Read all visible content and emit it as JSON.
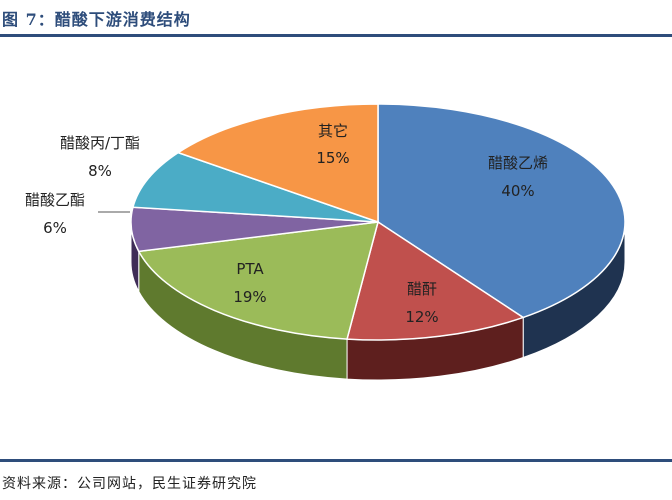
{
  "header": {
    "title": "图 7：醋酸下游消费结构"
  },
  "footer": {
    "source": "资料来源：公司网站，民生证券研究院"
  },
  "chart_data": {
    "type": "pie",
    "title": "图 7：醋酸下游消费结构",
    "style": "3d",
    "slices": [
      {
        "name": "醋酸乙烯",
        "value": 40,
        "label": "40%",
        "color": "#4f81bd",
        "side_color": "#1f3350"
      },
      {
        "name": "醋酐",
        "value": 12,
        "label": "12%",
        "color": "#c0504d",
        "side_color": "#5e1f1e"
      },
      {
        "name": "PTA",
        "value": 19,
        "label": "19%",
        "color": "#9bbb59",
        "side_color": "#5f7a2e"
      },
      {
        "name": "醋酸乙酯",
        "value": 6,
        "label": "6%",
        "color": "#8064a2",
        "side_color": "#3f2d57"
      },
      {
        "name": "醋酸丙/丁酯",
        "value": 8,
        "label": "8%",
        "color": "#4bacc6",
        "side_color": "#1f5f70"
      },
      {
        "name": "其它",
        "value": 15,
        "label": "15%",
        "color": "#f79646",
        "side_color": "#8a4d17"
      }
    ]
  }
}
